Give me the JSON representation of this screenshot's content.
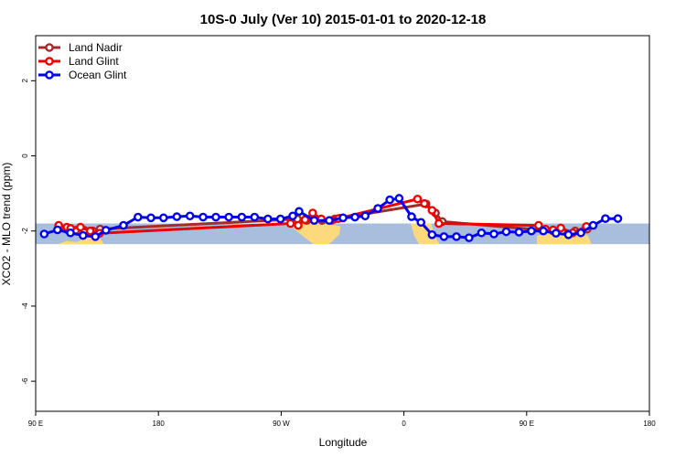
{
  "chart_data": {
    "type": "line",
    "title": "10S-0 July (Ver 10)   2015-01-01 to 2020-12-18",
    "xlabel": "Longitude",
    "ylabel": "XCO2 - MLO trend (ppm)",
    "xlim": [
      90,
      450
    ],
    "ylim": [
      -6.8,
      3.2
    ],
    "x_ticks": [
      {
        "value": 90,
        "label": "90 E"
      },
      {
        "value": 162,
        "label": "180"
      },
      {
        "value": 234,
        "label": "90 W"
      },
      {
        "value": 306,
        "label": "0"
      },
      {
        "value": 378,
        "label": "90 E"
      },
      {
        "value": 450,
        "label": "180"
      }
    ],
    "y_ticks": [
      {
        "value": 2,
        "label": "2"
      },
      {
        "value": 0,
        "label": "0"
      },
      {
        "value": -2,
        "label": "-2"
      },
      {
        "value": -4,
        "label": "-4"
      },
      {
        "value": -6,
        "label": "-6"
      }
    ],
    "map_band": {
      "y_from": -2.35,
      "y_to": -1.8,
      "ocean_color": "#a8bedc",
      "land_color": "#fdd97e"
    },
    "legend_position": "top-left",
    "series": [
      {
        "name": "Land Nadir",
        "color": "#a52a2a",
        "points": [
          [
            103.5,
            -1.93
          ],
          [
            109.0,
            -1.98
          ],
          [
            113.5,
            -1.98
          ],
          [
            118.5,
            -1.98
          ],
          [
            123.5,
            -2.0
          ],
          [
            127.8,
            -1.95
          ],
          [
            243.5,
            -1.68
          ],
          [
            249.0,
            -1.72
          ],
          [
            258.0,
            -1.72
          ],
          [
            265.5,
            -1.68
          ],
          [
            268.5,
            -1.66
          ],
          [
            319.0,
            -1.28
          ],
          [
            324.5,
            -1.52
          ],
          [
            328.5,
            -1.75
          ],
          [
            387.5,
            -1.98
          ],
          [
            393.5,
            -2.0
          ],
          [
            398.8,
            -2.0
          ],
          [
            406.5,
            -2.0
          ],
          [
            413.5,
            -1.95
          ]
        ]
      },
      {
        "name": "Land Glint",
        "color": "#ee0000",
        "points": [
          [
            103.5,
            -1.85
          ],
          [
            108.3,
            -1.9
          ],
          [
            110.5,
            -1.93
          ],
          [
            116.3,
            -1.9
          ],
          [
            122.0,
            -2.0
          ],
          [
            127.5,
            -2.06
          ],
          [
            239.5,
            -1.8
          ],
          [
            244.0,
            -1.85
          ],
          [
            248.0,
            -1.7
          ],
          [
            252.5,
            -1.52
          ],
          [
            257.5,
            -1.68
          ],
          [
            263.5,
            -1.72
          ],
          [
            267.5,
            -1.67
          ],
          [
            314.0,
            -1.15
          ],
          [
            318.0,
            -1.27
          ],
          [
            322.5,
            -1.45
          ],
          [
            326.5,
            -1.8
          ],
          [
            385.0,
            -1.85
          ],
          [
            389.0,
            -1.95
          ],
          [
            393.5,
            -1.97
          ],
          [
            398.0,
            -1.92
          ],
          [
            405.0,
            -2.05
          ],
          [
            413.0,
            -1.88
          ]
        ]
      },
      {
        "name": "Ocean Glint",
        "color": "#0000ee",
        "points": [
          [
            95.0,
            -2.08
          ],
          [
            102.8,
            -1.97
          ],
          [
            110.4,
            -2.05
          ],
          [
            117.8,
            -2.12
          ],
          [
            125.0,
            -2.15
          ],
          [
            131.2,
            -1.98
          ],
          [
            141.5,
            -1.85
          ],
          [
            150.0,
            -1.63
          ],
          [
            157.6,
            -1.65
          ],
          [
            165.0,
            -1.65
          ],
          [
            172.8,
            -1.62
          ],
          [
            180.5,
            -1.6
          ],
          [
            188.2,
            -1.63
          ],
          [
            195.7,
            -1.63
          ],
          [
            203.3,
            -1.63
          ],
          [
            210.9,
            -1.63
          ],
          [
            218.4,
            -1.63
          ],
          [
            226.2,
            -1.68
          ],
          [
            233.6,
            -1.68
          ],
          [
            240.8,
            -1.6
          ],
          [
            244.5,
            -1.48
          ],
          [
            253.4,
            -1.72
          ],
          [
            262.2,
            -1.72
          ],
          [
            270.3,
            -1.65
          ],
          [
            277.3,
            -1.63
          ],
          [
            283.3,
            -1.6
          ],
          [
            290.7,
            -1.4
          ],
          [
            297.7,
            -1.17
          ],
          [
            303.2,
            -1.13
          ],
          [
            310.5,
            -1.62
          ],
          [
            316.0,
            -1.77
          ],
          [
            322.5,
            -2.1
          ],
          [
            329.5,
            -2.15
          ],
          [
            336.8,
            -2.15
          ],
          [
            344.2,
            -2.18
          ],
          [
            351.5,
            -2.05
          ],
          [
            358.8,
            -2.08
          ],
          [
            366.0,
            -2.02
          ],
          [
            373.5,
            -2.03
          ],
          [
            380.8,
            -2.0
          ],
          [
            387.8,
            -2.0
          ],
          [
            395.2,
            -2.06
          ],
          [
            402.5,
            -2.1
          ],
          [
            409.8,
            -2.05
          ],
          [
            417.0,
            -1.85
          ],
          [
            424.2,
            -1.67
          ],
          [
            431.5,
            -1.67
          ]
        ]
      }
    ]
  }
}
